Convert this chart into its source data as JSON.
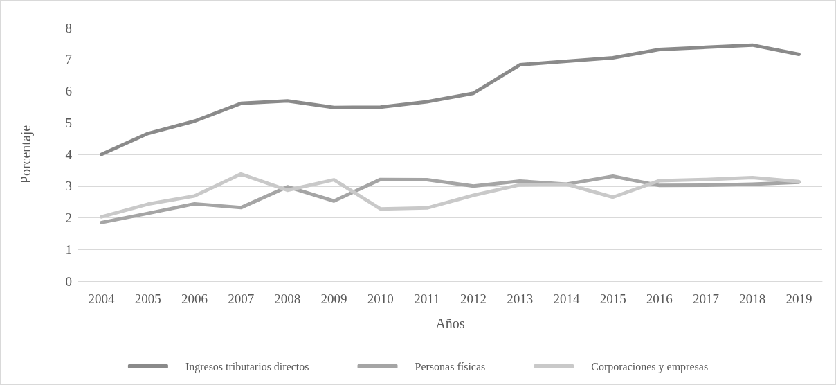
{
  "chart_data": {
    "type": "line",
    "xlabel": "Años",
    "ylabel": "Porcentaje",
    "categories": [
      "2004",
      "2005",
      "2006",
      "2007",
      "2008",
      "2009",
      "2010",
      "2011",
      "2012",
      "2013",
      "2014",
      "2015",
      "2016",
      "2017",
      "2018",
      "2019"
    ],
    "series": [
      {
        "name": "Ingresos tributarios directos",
        "color": "#8a8a8a",
        "values": [
          4.0,
          4.66,
          5.05,
          5.61,
          5.69,
          5.48,
          5.49,
          5.66,
          5.93,
          6.83,
          6.94,
          7.05,
          7.31,
          7.38,
          7.45,
          7.16
        ]
      },
      {
        "name": "Personas físicas",
        "color": "#a5a5a5",
        "values": [
          1.85,
          2.14,
          2.44,
          2.32,
          2.98,
          2.53,
          3.21,
          3.2,
          3.0,
          3.16,
          3.06,
          3.31,
          3.02,
          3.03,
          3.06,
          3.12
        ]
      },
      {
        "name": "Corporaciones y empresas",
        "color": "#c9c9c9",
        "values": [
          2.03,
          2.43,
          2.69,
          3.38,
          2.87,
          3.2,
          2.28,
          2.31,
          2.71,
          3.04,
          3.06,
          2.65,
          3.17,
          3.21,
          3.27,
          3.14
        ]
      }
    ],
    "ylim": [
      0,
      8
    ],
    "yticks": [
      0,
      1,
      2,
      3,
      4,
      5,
      6,
      7,
      8
    ],
    "grid": "y",
    "legend": "bottom",
    "marker": "none",
    "line_style": "solid"
  }
}
